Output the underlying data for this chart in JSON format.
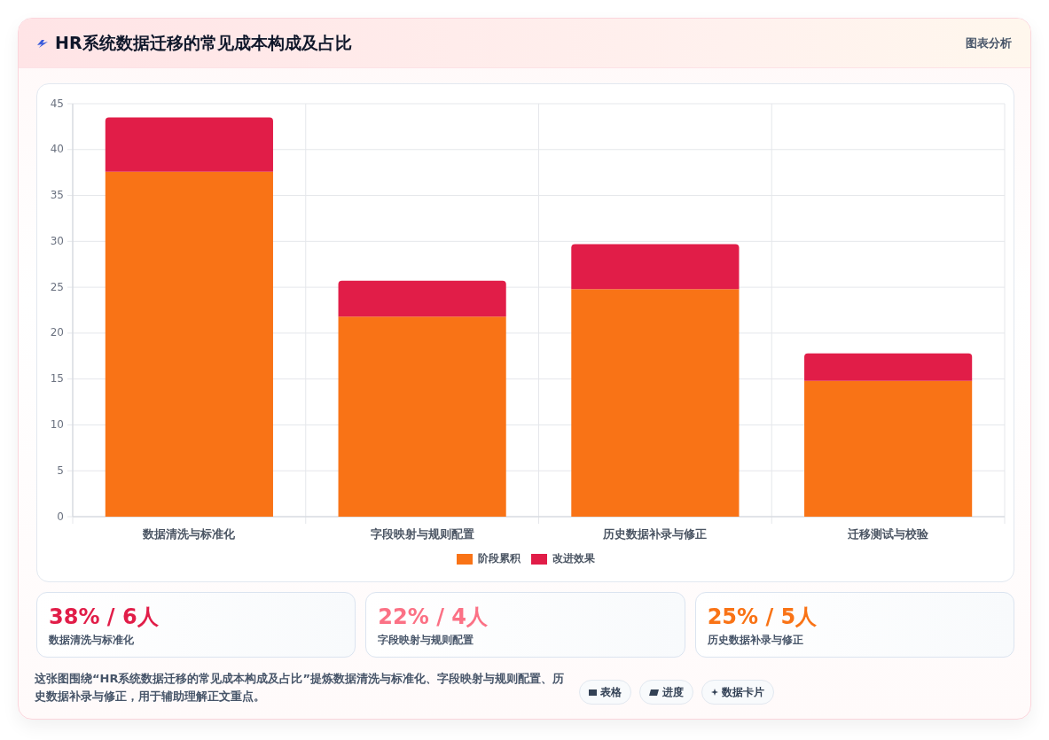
{
  "chart_data": [
    {
      "type": "bar",
      "title": "HR系统数据迁移的常见成本构成及占比",
      "categories": [
        "数据清洗与标准化",
        "字段映射与规则配置",
        "历史数据补录与修正",
        "迁移测试与校验"
      ],
      "series": [
        {
          "name": "阶段累积",
          "color": "#f97316",
          "values": [
            37.6,
            21.8,
            24.8,
            14.8
          ]
        },
        {
          "name": "改进效果",
          "color": "#e11d48",
          "values": [
            5.9,
            3.9,
            4.9,
            3.0
          ]
        }
      ],
      "stacked": true,
      "ylim": [
        0,
        45
      ],
      "yticks": [
        0,
        5,
        10,
        15,
        20,
        25,
        30,
        35,
        40,
        45
      ],
      "grid": true,
      "legend": "bottom",
      "annotations": [
        "图表分析",
        "这张图围绕“HR系统数据迁移的常见成本构成及占比”提炼数据清洗与标准化、字段映射与规则配置、历史数据补录与修正，用于辅助理解正文重点。",
        "表格",
        "进度",
        "数据卡片"
      ]
    },
    {
      "type": "other",
      "annotations": [
        "38% / 6人",
        "数据清洗与标准化",
        "22% / 4人",
        "字段映射与规则配置",
        "25% / 5人",
        "历史数据补录与修正"
      ]
    }
  ]
}
